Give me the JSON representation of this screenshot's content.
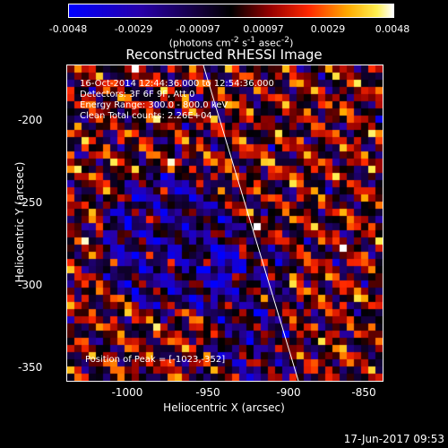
{
  "colorbar": {
    "ticks": [
      "-0.0048",
      "-0.0029",
      "-0.00097",
      "0.00097",
      "0.0029",
      "0.0048"
    ],
    "unit_html": "(photons cm<sup>-2</sup> s<sup>-1</sup> asec<sup>-2</sup>)"
  },
  "title": "Reconstructed RHESSI Image",
  "info": {
    "time_range": "16-Oct-2014 12:44:36.000 to 12:54:36.000",
    "detectors": "Detectors: 3F 6F 9F, Att 0",
    "energy_range": "Energy Range: 300.0 - 800.0 keV",
    "method_counts": "Clean     Total counts: 2.26E+04",
    "peak": "Position of Peak = [-1023,-352]"
  },
  "axes": {
    "x_label": "Heliocentric X (arcsec)",
    "y_label": "Heliocentric Y (arcsec)",
    "x_ticks": [
      "-1000",
      "-950",
      "-900",
      "-850"
    ],
    "y_ticks": [
      "-200",
      "-250",
      "-300",
      "-350"
    ]
  },
  "timestamp": "17-Jun-2017 09:53"
}
